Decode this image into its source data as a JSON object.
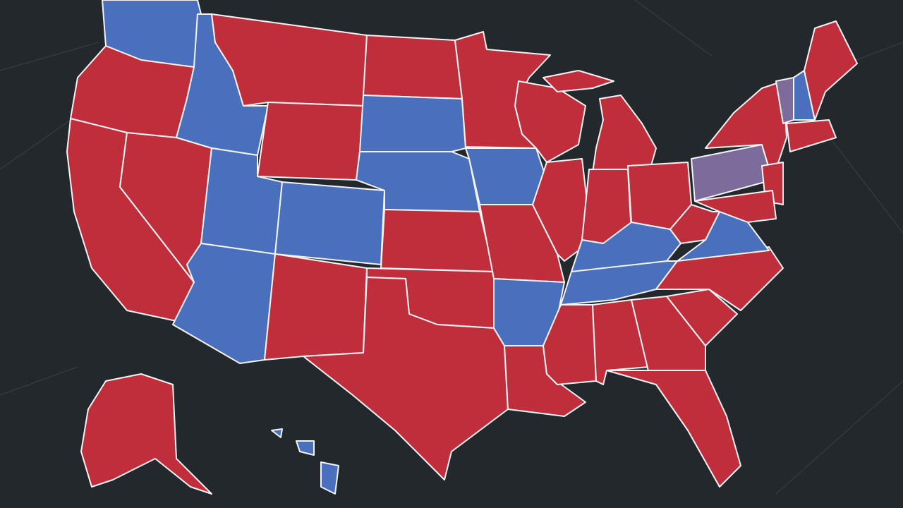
{
  "map": {
    "background": "#23282d",
    "border": "#f4f4f6",
    "fills": [
      "#bf2e3a",
      "#4a6fbd",
      "#7d6b9b"
    ]
  }
}
